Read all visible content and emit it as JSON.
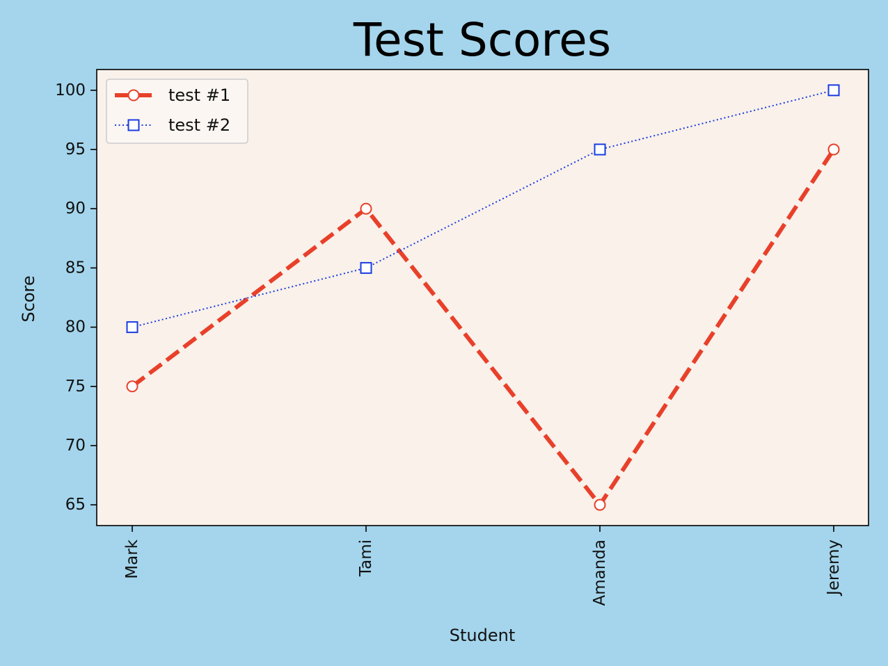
{
  "chart_data": {
    "type": "line",
    "title": "Test Scores",
    "xlabel": "Student",
    "ylabel": "Score",
    "categories": [
      "Mark",
      "Tami",
      "Amanda",
      "Jeremy"
    ],
    "yticks": [
      65,
      70,
      75,
      80,
      85,
      90,
      95,
      100
    ],
    "ylim": [
      63.25,
      101.75
    ],
    "grid": false,
    "legend_position": "top-left",
    "series": [
      {
        "name": "test #1",
        "values": [
          75,
          90,
          65,
          95
        ],
        "color": "#e8402a",
        "line_style": "dashed",
        "marker": "circle"
      },
      {
        "name": "test #2",
        "values": [
          80,
          85,
          95,
          100
        ],
        "color": "#1a3be0",
        "line_style": "dotted",
        "marker": "square"
      }
    ],
    "colors": {
      "figure_background": "#a4d5ec",
      "plot_background": "#f9f1ea",
      "marker_fill": "#ffffff"
    }
  }
}
